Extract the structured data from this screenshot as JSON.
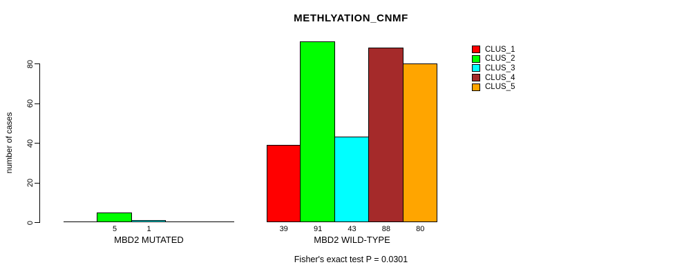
{
  "title": "METHLYATION_CNMF",
  "footer_note": "Fisher's exact test P = 0.0301",
  "y_axis": {
    "label": "number of cases"
  },
  "legend": {
    "items": [
      {
        "label": "CLUS_1",
        "color": "#FF0000"
      },
      {
        "label": "CLUS_2",
        "color": "#00FF00"
      },
      {
        "label": "CLUS_3",
        "color": "#00FFFF"
      },
      {
        "label": "CLUS_4",
        "color": "#A52A2A"
      },
      {
        "label": "CLUS_5",
        "color": "#FFA500"
      }
    ]
  },
  "chart_data": {
    "type": "bar",
    "title": "METHLYATION_CNMF",
    "ylabel": "number of cases",
    "annotation": "Fisher's exact test P = 0.0301",
    "series": [
      "CLUS_1",
      "CLUS_2",
      "CLUS_3",
      "CLUS_4",
      "CLUS_5"
    ],
    "series_colors": [
      "#FF0000",
      "#00FF00",
      "#00FFFF",
      "#A52A2A",
      "#FFA500"
    ],
    "groups": [
      {
        "label": "MBD2 MUTATED",
        "values": [
          0,
          5,
          1,
          0,
          0
        ],
        "value_labels": [
          "",
          "5",
          "1",
          "",
          ""
        ]
      },
      {
        "label": "MBD2 WILD-TYPE",
        "values": [
          39,
          91,
          43,
          88,
          80
        ],
        "value_labels": [
          "39",
          "91",
          "43",
          "88",
          "80"
        ]
      }
    ],
    "yticks": [
      0,
      20,
      40,
      60,
      80
    ],
    "ylim": [
      0,
      91.5
    ],
    "grid": false,
    "legend_position": "right",
    "bar_border_color": "#000000"
  }
}
